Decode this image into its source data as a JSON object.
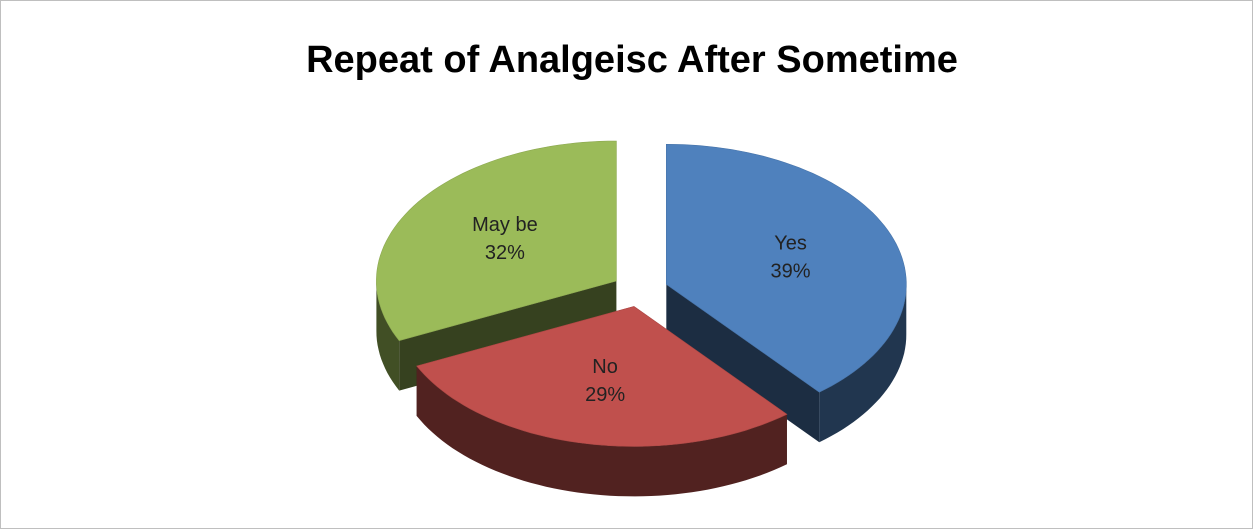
{
  "chart_data": {
    "type": "pie",
    "title": "Repeat of Analgeisc After Sometime",
    "categories": [
      "Yes",
      "No",
      "May be"
    ],
    "values": [
      39,
      29,
      32
    ],
    "value_labels": [
      "39%",
      "29%",
      "32%"
    ],
    "colors": [
      "#4f81bd",
      "#c0504d",
      "#9bbb59"
    ]
  }
}
